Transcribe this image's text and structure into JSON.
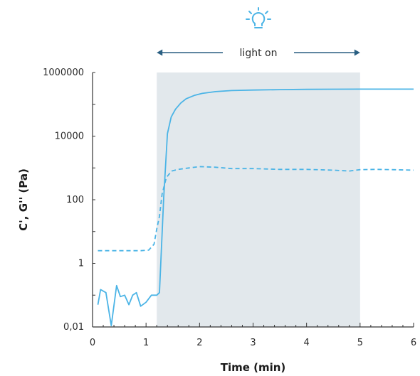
{
  "chart_data": {
    "type": "line",
    "xlabel": "Time (min)",
    "ylabel": "C', G'' (Pa)",
    "xlim": [
      0,
      6
    ],
    "ylim": [
      0.01,
      1000000
    ],
    "yscale": "log",
    "x_ticks": [
      0,
      1,
      2,
      3,
      4,
      5,
      6
    ],
    "x_tick_labels": [
      "0",
      "1",
      "2",
      "3",
      "4",
      "5",
      "6"
    ],
    "y_ticks": [
      0.01,
      1,
      100,
      10000,
      1000000
    ],
    "y_tick_labels": [
      "0,01",
      "1",
      "100",
      "10000",
      "1000000"
    ],
    "grid": false,
    "shaded_region": {
      "x": [
        1.2,
        5.0
      ],
      "color": "#e2e8ec"
    },
    "annotation": {
      "text": "light on",
      "x_range": [
        1.2,
        5.0
      ],
      "icon": "lightbulb-icon"
    },
    "colors": {
      "series": "#4bb4e6",
      "arrow": "#2a5f82",
      "icon": "#4bb4e6",
      "axis": "#333333"
    },
    "series": [
      {
        "style": "solid",
        "points": [
          [
            0.1,
            0.05
          ],
          [
            0.15,
            0.15
          ],
          [
            0.25,
            0.12
          ],
          [
            0.35,
            0.011
          ],
          [
            0.45,
            0.2
          ],
          [
            0.52,
            0.09
          ],
          [
            0.6,
            0.1
          ],
          [
            0.68,
            0.05
          ],
          [
            0.75,
            0.1
          ],
          [
            0.82,
            0.12
          ],
          [
            0.9,
            0.045
          ],
          [
            1.0,
            0.06
          ],
          [
            1.1,
            0.1
          ],
          [
            1.2,
            0.1
          ],
          [
            1.25,
            0.12
          ],
          [
            1.33,
            120
          ],
          [
            1.4,
            12000
          ],
          [
            1.47,
            40000
          ],
          [
            1.55,
            70000
          ],
          [
            1.65,
            110000
          ],
          [
            1.75,
            150000
          ],
          [
            1.9,
            190000
          ],
          [
            2.05,
            220000
          ],
          [
            2.3,
            250000
          ],
          [
            2.6,
            270000
          ],
          [
            3.0,
            280000
          ],
          [
            3.5,
            290000
          ],
          [
            4.0,
            295000
          ],
          [
            4.5,
            298000
          ],
          [
            5.0,
            300000
          ],
          [
            5.5,
            300000
          ],
          [
            6.0,
            300000
          ]
        ]
      },
      {
        "style": "dashed",
        "points": [
          [
            0.1,
            2.5
          ],
          [
            0.3,
            2.5
          ],
          [
            0.6,
            2.5
          ],
          [
            0.9,
            2.5
          ],
          [
            1.05,
            2.6
          ],
          [
            1.15,
            4
          ],
          [
            1.2,
            12
          ],
          [
            1.25,
            30
          ],
          [
            1.3,
            150
          ],
          [
            1.38,
            500
          ],
          [
            1.48,
            800
          ],
          [
            1.6,
            900
          ],
          [
            1.8,
            1000
          ],
          [
            2.0,
            1100
          ],
          [
            2.3,
            1050
          ],
          [
            2.6,
            950
          ],
          [
            3.0,
            950
          ],
          [
            3.5,
            900
          ],
          [
            4.0,
            900
          ],
          [
            4.5,
            850
          ],
          [
            4.8,
            800
          ],
          [
            5.0,
            880
          ],
          [
            5.3,
            900
          ],
          [
            5.6,
            880
          ],
          [
            6.0,
            850
          ]
        ]
      }
    ]
  }
}
